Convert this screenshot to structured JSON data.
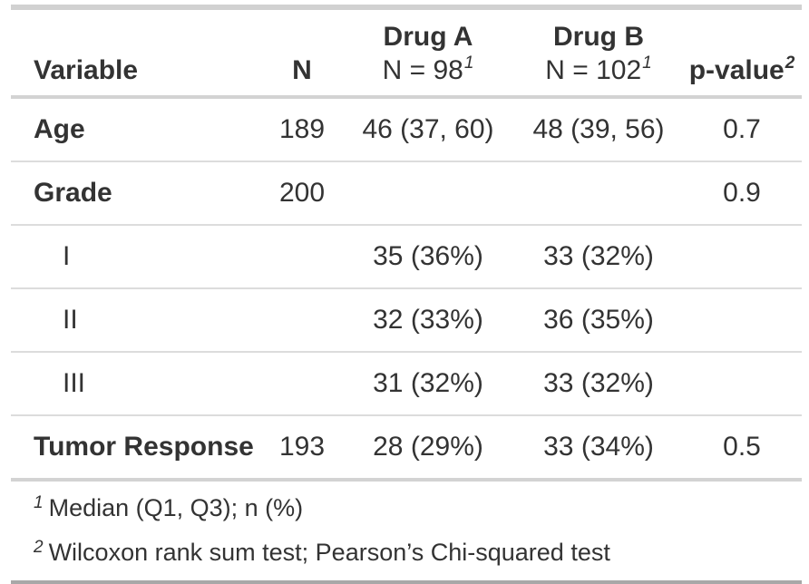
{
  "colors": {
    "text": "#333333",
    "background": "#FFFFFF",
    "border_top": "#D1D1D1",
    "header_divider": "#D3D3D3",
    "row_divider": "#DCDCDC",
    "body_bottom_divider": "#D3D3D3",
    "border_bottom": "#A8A8A8"
  },
  "header": {
    "variable": "Variable",
    "n": "N",
    "drug_a": {
      "line1": "Drug A",
      "line2": "N = 98",
      "mark": "1"
    },
    "drug_b": {
      "line1": "Drug B",
      "line2": "N = 102",
      "mark": "1"
    },
    "p_value": {
      "label": "p-value",
      "mark": "2"
    }
  },
  "footnotes": [
    {
      "mark": "1",
      "text": "Median (Q1, Q3); n (%)"
    },
    {
      "mark": "2",
      "text": "Wilcoxon rank sum test; Pearson’s Chi-squared test"
    }
  ],
  "chart_data": {
    "type": "table",
    "title": "",
    "columns": [
      "Variable",
      "N",
      "Drug A N = 98",
      "Drug B N = 102",
      "p-value"
    ],
    "rows": [
      [
        "Age",
        "189",
        "46 (37, 60)",
        "48 (39, 56)",
        "0.7"
      ],
      [
        "Grade",
        "200",
        "",
        "",
        "0.9"
      ],
      [
        "I",
        "",
        "35 (36%)",
        "33 (32%)",
        ""
      ],
      [
        "II",
        "",
        "32 (33%)",
        "36 (35%)",
        ""
      ],
      [
        "III",
        "",
        "31 (32%)",
        "33 (32%)",
        ""
      ],
      [
        "Tumor Response",
        "193",
        "28 (29%)",
        "33 (34%)",
        "0.5"
      ]
    ],
    "footnotes": [
      "1 Median (Q1, Q3); n (%)",
      "2 Wilcoxon rank sum test; Pearson’s Chi-squared test"
    ]
  }
}
